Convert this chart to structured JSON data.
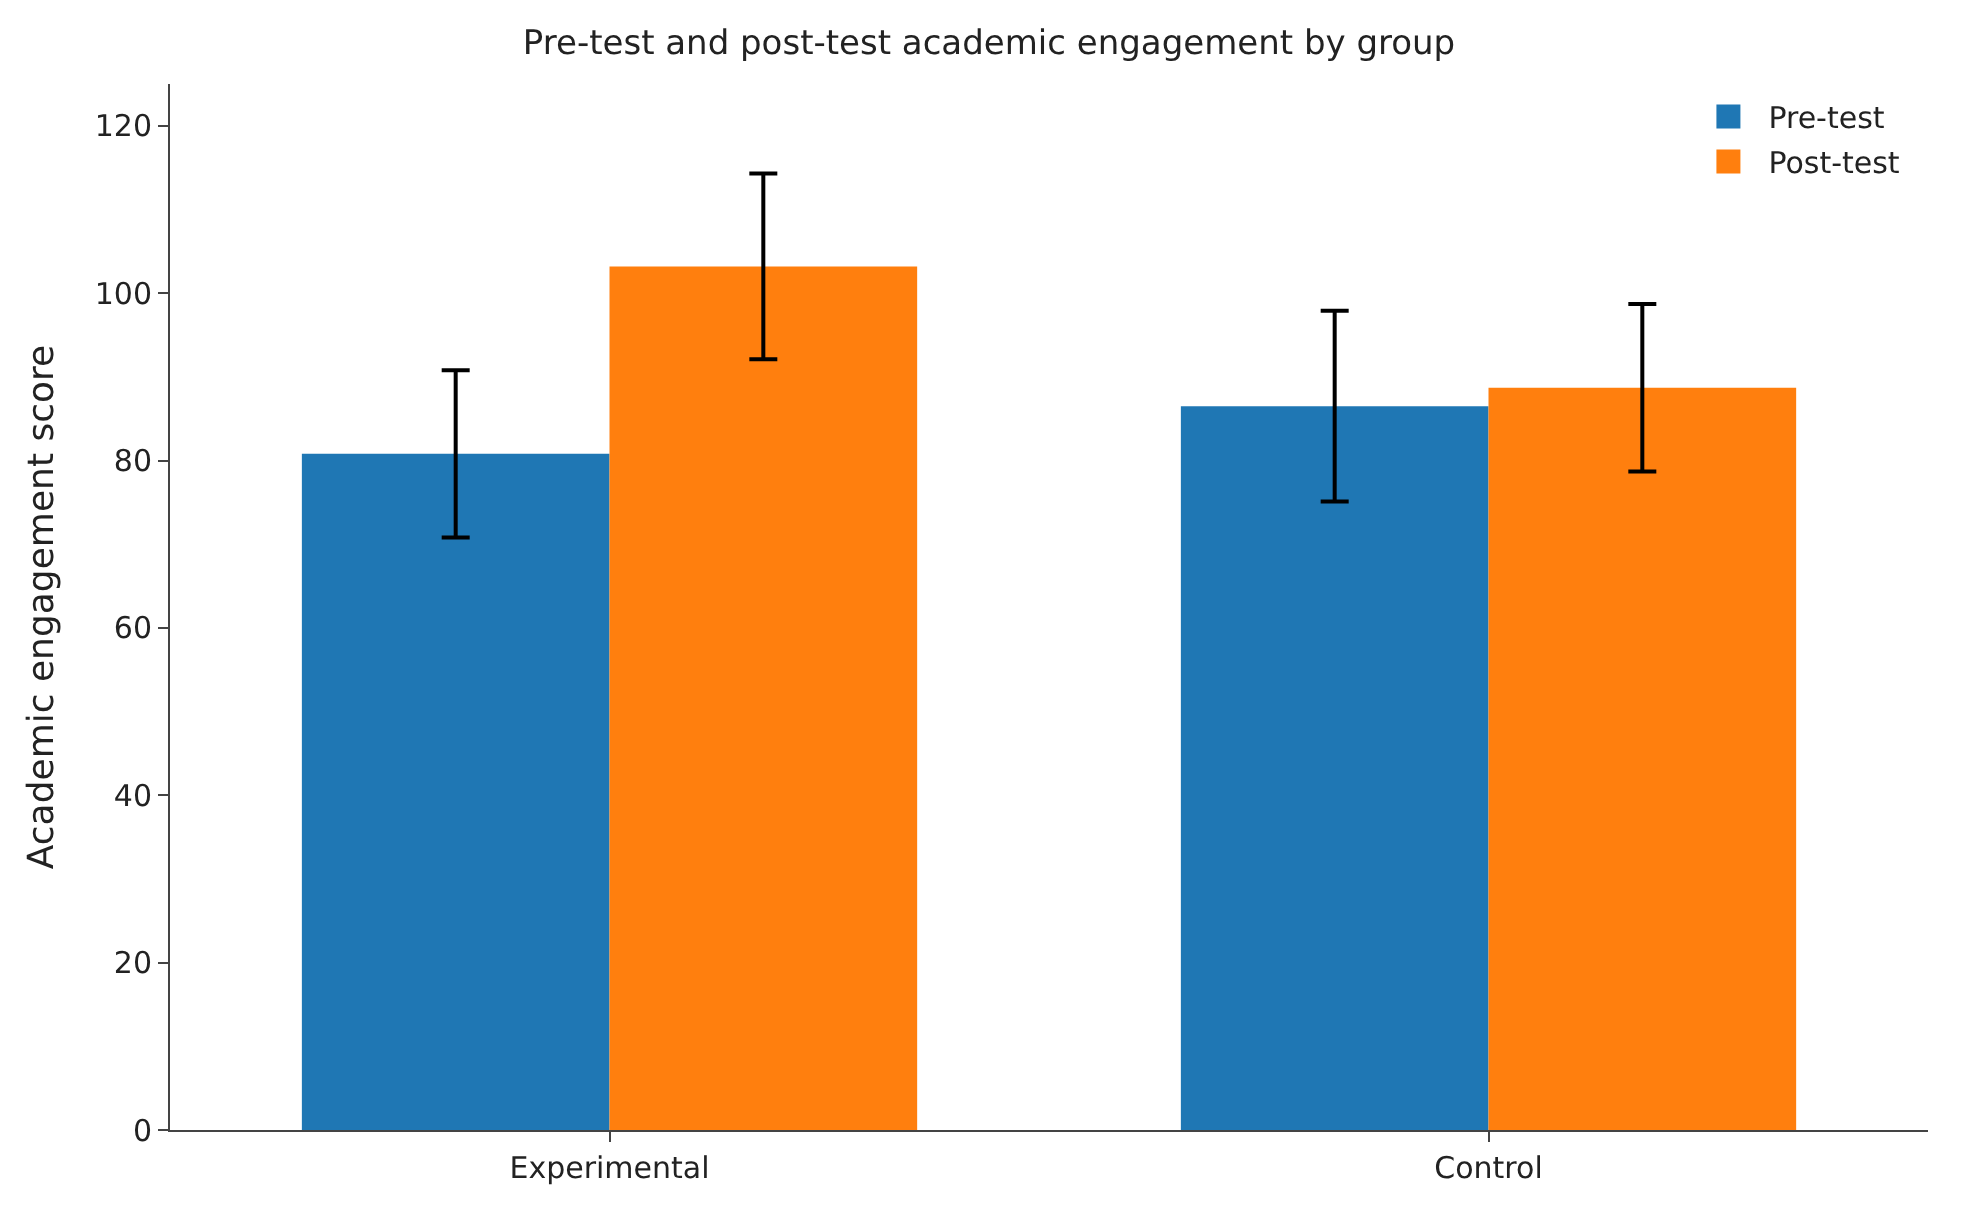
{
  "chart_data": {
    "type": "bar",
    "title": "Pre-test and post-test academic engagement by group",
    "ylabel": "Academic engagement score",
    "categories": [
      "Experimental",
      "Control"
    ],
    "series": [
      {
        "name": "Pre-test",
        "color": "#1f77b4",
        "values": [
          80.8,
          86.5
        ],
        "errors": [
          10,
          11.4
        ]
      },
      {
        "name": "Post-test",
        "color": "#ff7f0e",
        "values": [
          103.2,
          88.7
        ],
        "errors": [
          11.1,
          10
        ]
      }
    ],
    "ylim": [
      0,
      125
    ],
    "yticks": [
      0,
      20,
      40,
      60,
      80,
      100,
      120
    ],
    "legend": "top right"
  }
}
